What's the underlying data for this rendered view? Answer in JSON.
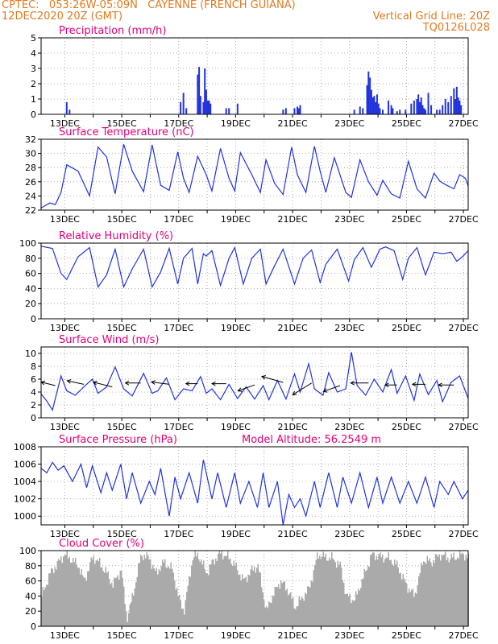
{
  "header": {
    "line1": "CPTEC:   053:26W-05:09N   CAYENNE (FRENCH GUIANA)",
    "line2_left": "12DEC2020 20Z (GMT)",
    "line2_right": "Vertical Grid Line: 20Z",
    "line3_right": "TQ0126L028"
  },
  "colors": {
    "header": "#e07a1f",
    "title": "#e0007a",
    "series": "#2233dd",
    "cloud": "#aaaaaa",
    "grid": "#999999"
  },
  "date_labels": [
    "13DEC",
    "15DEC",
    "17DEC",
    "19DEC",
    "21DEC",
    "23DEC",
    "25DEC",
    "27DEC"
  ],
  "chart_data": [
    {
      "type": "bar",
      "title": "Precipitation (mm/h)",
      "ylim": [
        0,
        5
      ],
      "yticks": [
        "0",
        "1",
        "2",
        "3",
        "4",
        "5"
      ],
      "grid": true,
      "series": [
        {
          "x": [
            12.9,
            13.0,
            16.9,
            17.0,
            17.1,
            17.5,
            17.55,
            17.6,
            17.7,
            17.75,
            17.8,
            17.85,
            17.9,
            17.95,
            18.5,
            18.6,
            18.9,
            20.5,
            20.6,
            20.9,
            21.0,
            21.05,
            21.1,
            23.0,
            23.2,
            23.3,
            23.45,
            23.5,
            23.55,
            23.6,
            23.65,
            23.7,
            23.75,
            23.8,
            23.85,
            23.9,
            24.0,
            24.2,
            24.3,
            24.35,
            24.5,
            24.6,
            24.8,
            25.0,
            25.1,
            25.2,
            25.25,
            25.3,
            25.35,
            25.4,
            25.45,
            25.5,
            25.6,
            25.7,
            25.9,
            26.0,
            26.1,
            26.2,
            26.3,
            26.4,
            26.5,
            26.55,
            26.6,
            26.65,
            26.7,
            26.75
          ],
          "values": [
            0.8,
            0.3,
            0.8,
            1.4,
            0.4,
            2.6,
            3.1,
            1.2,
            0.8,
            3.0,
            1.6,
            0.9,
            0.9,
            0.7,
            0.4,
            0.4,
            0.7,
            0.3,
            0.4,
            0.4,
            0.5,
            0.4,
            0.6,
            0.3,
            0.5,
            0.4,
            1.9,
            2.8,
            2.4,
            1.6,
            1.1,
            1.2,
            0.8,
            1.3,
            0.7,
            0.4,
            0.3,
            0.9,
            0.6,
            0.4,
            0.2,
            0.3,
            0.3,
            0.7,
            0.9,
            1.0,
            1.3,
            0.8,
            1.1,
            0.6,
            0.4,
            0.3,
            1.4,
            0.6,
            0.3,
            0.3,
            0.6,
            1.0,
            0.8,
            1.2,
            1.7,
            1.0,
            1.8,
            1.1,
            0.9,
            0.6
          ]
        }
      ]
    },
    {
      "type": "line",
      "title": "Surface Temperature (nC)",
      "ylim": [
        22,
        32
      ],
      "yticks": [
        "22",
        "24",
        "26",
        "28",
        "30",
        "32"
      ],
      "grid": true,
      "series": [
        {
          "x": [
            12.0,
            12.3,
            12.5,
            12.7,
            12.9,
            13.3,
            13.7,
            14.0,
            14.3,
            14.6,
            14.9,
            15.2,
            15.6,
            15.9,
            16.2,
            16.5,
            16.8,
            17.0,
            17.2,
            17.5,
            17.8,
            18.0,
            18.3,
            18.6,
            18.8,
            19.0,
            19.4,
            19.7,
            19.9,
            20.2,
            20.5,
            20.8,
            21.0,
            21.3,
            21.6,
            21.8,
            22.0,
            22.3,
            22.7,
            22.9,
            23.2,
            23.5,
            23.8,
            24.0,
            24.3,
            24.6,
            24.9,
            25.2,
            25.5,
            25.8,
            26.0,
            26.2,
            26.5,
            26.7,
            26.9,
            27.0
          ],
          "values": [
            22.3,
            23.0,
            22.8,
            24.5,
            28.4,
            27.5,
            24.0,
            30.9,
            29.5,
            24.3,
            31.3,
            27.5,
            24.6,
            31.2,
            25.5,
            24.8,
            30.2,
            26.5,
            24.5,
            29.6,
            27.0,
            24.7,
            30.7,
            26.5,
            24.7,
            30.1,
            27.0,
            24.5,
            29.1,
            25.8,
            24.2,
            30.9,
            27.0,
            24.5,
            31.0,
            27.5,
            24.5,
            29.4,
            24.5,
            23.8,
            29.1,
            26.0,
            24.1,
            26.2,
            24.3,
            23.7,
            28.9,
            25.0,
            23.7,
            27.2,
            26.1,
            25.6,
            25.0,
            27.0,
            26.5,
            25.4
          ]
        }
      ]
    },
    {
      "type": "line",
      "title": "Relative Humidity (%)",
      "ylim": [
        0,
        100
      ],
      "yticks": [
        "0",
        "20",
        "40",
        "60",
        "80",
        "100"
      ],
      "grid": true,
      "series": [
        {
          "x": [
            12.0,
            12.4,
            12.7,
            12.9,
            13.3,
            13.7,
            14.0,
            14.3,
            14.6,
            14.9,
            15.2,
            15.6,
            15.9,
            16.2,
            16.5,
            16.8,
            17.0,
            17.3,
            17.5,
            17.7,
            17.8,
            18.0,
            18.3,
            18.6,
            18.8,
            19.1,
            19.4,
            19.7,
            19.9,
            20.2,
            20.5,
            20.9,
            21.2,
            21.5,
            21.8,
            22.0,
            22.4,
            22.8,
            23.0,
            23.3,
            23.6,
            23.9,
            24.1,
            24.4,
            24.7,
            24.9,
            25.2,
            25.5,
            25.8,
            26.1,
            26.4,
            26.6,
            26.8,
            27.0
          ],
          "values": [
            96,
            93,
            60,
            52,
            82,
            94,
            42,
            58,
            92,
            42,
            66,
            92,
            42,
            62,
            93,
            46,
            80,
            93,
            46,
            86,
            83,
            90,
            44,
            80,
            94,
            46,
            80,
            92,
            46,
            70,
            92,
            46,
            80,
            91,
            48,
            72,
            92,
            50,
            78,
            94,
            68,
            92,
            95,
            90,
            52,
            80,
            94,
            58,
            88,
            86,
            88,
            76,
            82,
            90
          ]
        }
      ]
    },
    {
      "type": "line",
      "title": "Surface Wind (m/s)",
      "ylim": [
        0,
        11
      ],
      "yticks": [
        "0",
        "2",
        "4",
        "6",
        "8",
        "10"
      ],
      "grid": true,
      "series": [
        {
          "x": [
            12.0,
            12.2,
            12.4,
            12.7,
            12.9,
            13.2,
            13.5,
            13.8,
            14.0,
            14.3,
            14.6,
            14.9,
            15.2,
            15.6,
            15.9,
            16.1,
            16.4,
            16.7,
            17.0,
            17.3,
            17.6,
            17.8,
            18.0,
            18.3,
            18.6,
            18.9,
            19.2,
            19.5,
            19.8,
            20.0,
            20.3,
            20.6,
            20.9,
            21.1,
            21.4,
            21.6,
            21.9,
            22.1,
            22.4,
            22.7,
            22.9,
            23.1,
            23.4,
            23.7,
            24.0,
            24.3,
            24.5,
            24.8,
            25.1,
            25.3,
            25.6,
            25.9,
            26.1,
            26.4,
            26.7,
            27.0
          ],
          "values": [
            3.7,
            2.6,
            1.2,
            6.5,
            4.2,
            3.5,
            4.8,
            6.0,
            3.8,
            4.8,
            7.9,
            4.5,
            3.4,
            6.9,
            3.8,
            4.2,
            6.2,
            2.8,
            4.5,
            4.2,
            6.4,
            3.8,
            4.5,
            2.8,
            5.2,
            3.0,
            4.8,
            2.9,
            5.0,
            2.8,
            5.8,
            2.9,
            6.8,
            4.0,
            8.4,
            4.5,
            3.5,
            7.0,
            4.0,
            4.5,
            10.2,
            5.0,
            3.5,
            6.0,
            4.0,
            7.5,
            3.8,
            6.5,
            2.7,
            6.8,
            3.6,
            5.8,
            2.5,
            5.5,
            6.5,
            3.0
          ]
        }
      ]
    },
    {
      "type": "line",
      "title": "Surface Pressure (hPa)",
      "annotation": "Model Altitude: 56.2549 m",
      "ylim": [
        999,
        1008
      ],
      "yticks": [
        "1000",
        "1002",
        "1004",
        "1006",
        "1008"
      ],
      "grid": true,
      "series": [
        {
          "x": [
            12.0,
            12.2,
            12.4,
            12.6,
            12.8,
            13.1,
            13.4,
            13.6,
            13.8,
            14.1,
            14.3,
            14.5,
            14.8,
            15.0,
            15.2,
            15.5,
            15.8,
            16.0,
            16.2,
            16.5,
            16.7,
            16.9,
            17.2,
            17.5,
            17.7,
            18.0,
            18.2,
            18.5,
            18.8,
            19.0,
            19.3,
            19.6,
            19.8,
            20.0,
            20.3,
            20.5,
            20.7,
            20.9,
            21.1,
            21.3,
            21.6,
            21.8,
            22.1,
            22.4,
            22.6,
            22.9,
            23.2,
            23.5,
            23.8,
            24.0,
            24.3,
            24.6,
            24.9,
            25.2,
            25.5,
            25.8,
            26.0,
            26.3,
            26.5,
            26.8,
            27.0
          ],
          "values": [
            1005.5,
            1005.0,
            1006.2,
            1005.3,
            1005.8,
            1004.0,
            1006.0,
            1003.3,
            1005.8,
            1002.7,
            1005.0,
            1003.0,
            1006.0,
            1002.0,
            1005.0,
            1001.5,
            1004.0,
            1002.5,
            1005.5,
            1000.0,
            1004.5,
            1002.0,
            1005.0,
            1001.5,
            1006.5,
            1002.0,
            1005.0,
            1001.0,
            1005.0,
            1001.5,
            1004.0,
            1001.0,
            1005.0,
            1001.0,
            1004.0,
            999.0,
            1002.5,
            1001.0,
            1002.0,
            1000.0,
            1004.0,
            1001.0,
            1005.0,
            1001.0,
            1004.5,
            1001.5,
            1005.0,
            1001.0,
            1004.5,
            1001.5,
            1004.5,
            1001.5,
            1004.0,
            1001.5,
            1004.5,
            1001.0,
            1004.0,
            1002.5,
            1004.0,
            1002.0,
            1003.0
          ]
        }
      ]
    },
    {
      "type": "area",
      "title": "Cloud Cover (%)",
      "ylim": [
        0,
        100
      ],
      "yticks": [
        "0",
        "20",
        "40",
        "60",
        "80",
        "100"
      ],
      "grid": true,
      "series": [
        {
          "x": [
            12.0,
            12.3,
            12.6,
            12.8,
            13.0,
            13.3,
            13.5,
            13.8,
            14.0,
            14.3,
            14.5,
            14.8,
            15.0,
            15.2,
            15.5,
            15.8,
            16.0,
            16.3,
            16.6,
            16.8,
            17.0,
            17.3,
            17.5,
            17.8,
            18.0,
            18.3,
            18.6,
            18.8,
            19.1,
            19.4,
            19.6,
            19.9,
            20.1,
            20.4,
            20.7,
            20.9,
            21.1,
            21.4,
            21.7,
            21.9,
            22.2,
            22.5,
            22.7,
            23.0,
            23.3,
            23.6,
            23.9,
            24.2,
            24.5,
            24.8,
            25.1,
            25.4,
            25.7,
            26.0,
            26.3,
            26.6,
            26.8,
            27.0
          ],
          "values": [
            40,
            70,
            85,
            95,
            90,
            80,
            60,
            92,
            85,
            70,
            55,
            75,
            10,
            40,
            95,
            90,
            70,
            85,
            75,
            40,
            20,
            90,
            95,
            70,
            85,
            97,
            90,
            80,
            60,
            75,
            80,
            20,
            40,
            60,
            45,
            25,
            35,
            50,
            95,
            92,
            90,
            80,
            40,
            35,
            65,
            95,
            92,
            90,
            80,
            55,
            40,
            88,
            85,
            95,
            90,
            92,
            96,
            90
          ]
        }
      ]
    },
    {
      "type": "vector",
      "title": "Surface Wind direction arrows",
      "x": [
        12.5,
        13.5,
        14.5,
        15.5,
        16.5,
        17.5,
        18.5,
        19.5,
        20.5,
        21.5,
        22.5,
        23.5,
        24.5,
        25.5,
        26.5
      ],
      "y": [
        5.0,
        5.2,
        4.8,
        5.4,
        5.2,
        5.3,
        5.3,
        5.1,
        5.5,
        5.4,
        5.0,
        5.4,
        5.1,
        5.2,
        5.1
      ],
      "u": [
        -1.2,
        -1.4,
        -1.6,
        -1.3,
        -1.5,
        -1.0,
        -1.2,
        -1.4,
        -1.8,
        -1.6,
        -1.4,
        -1.5,
        -1.0,
        -1.1,
        -1.3
      ],
      "v": [
        0.3,
        0.3,
        0.4,
        0.0,
        0.2,
        0.0,
        0.0,
        -0.5,
        0.5,
        -1.0,
        -0.5,
        0.0,
        0.0,
        0.0,
        0.0
      ]
    }
  ]
}
